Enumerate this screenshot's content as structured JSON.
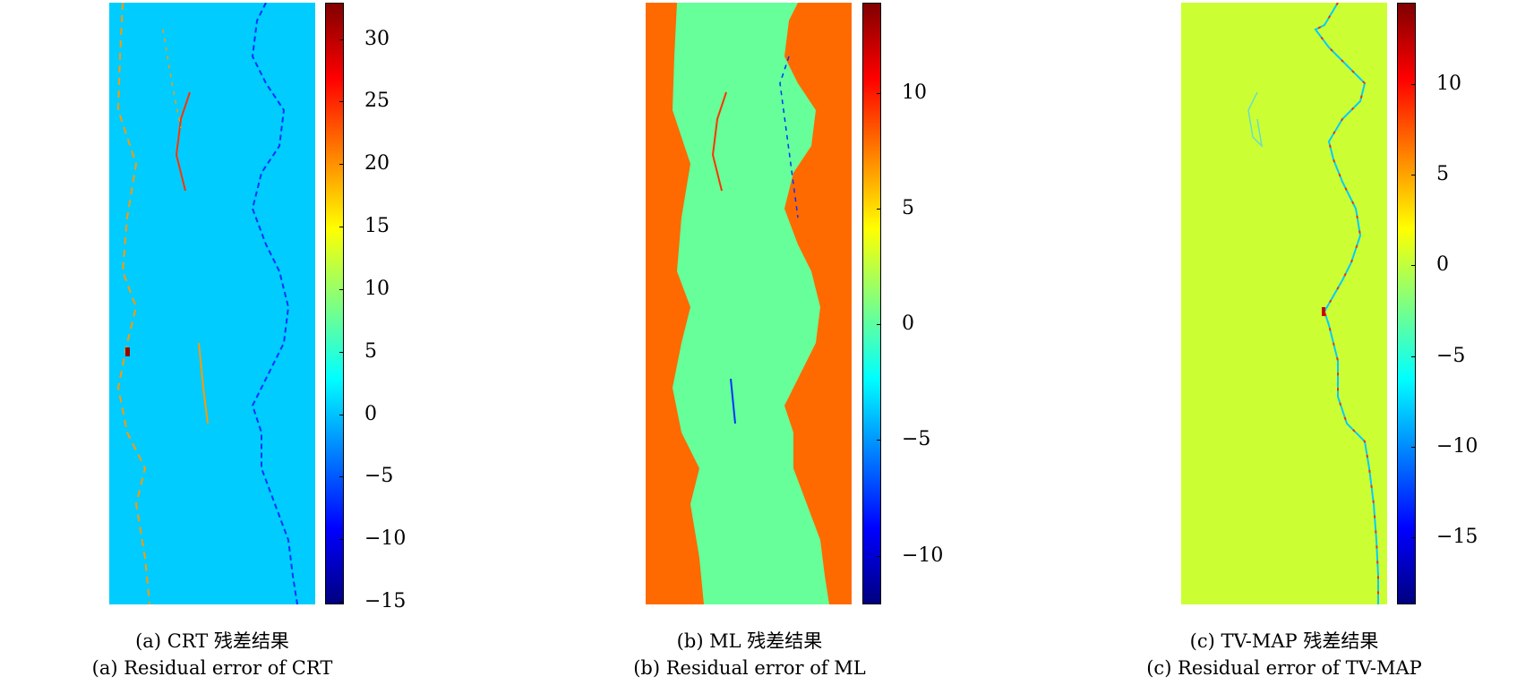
{
  "panels": [
    {
      "caption_cn": "(a) CRT 残差结果",
      "caption_en": "(a) Residual error of CRT",
      "background": "#00ccff",
      "edge_color": "#ff9900"
    },
    {
      "caption_cn": "(b) ML 残差结果",
      "caption_en": "(b) Residual error of ML",
      "background": "#ff6a00",
      "river_color": "#66ff99"
    },
    {
      "caption_cn": "(c) TV-MAP 残差结果",
      "caption_en": "(c) Residual error of TV-MAP",
      "background": "#ccff33",
      "edge_color": "#00ccff"
    }
  ],
  "chart_data": [
    {
      "type": "heatmap",
      "colormap": "jet",
      "colorbar": {
        "range": [
          -15.2,
          32.9
        ],
        "ticks": [
          30,
          25,
          20,
          15,
          10,
          5,
          0,
          -5,
          -10,
          -15
        ],
        "tick_labels": [
          "30",
          "25",
          "20",
          "15",
          "10",
          "5",
          "0",
          "−5",
          "−10",
          "−15"
        ]
      }
    },
    {
      "type": "heatmap",
      "colormap": "jet",
      "colorbar": {
        "range": [
          -12.1,
          13.9
        ],
        "ticks": [
          10,
          5,
          0,
          -5,
          -10
        ],
        "tick_labels": [
          "10",
          "5",
          "0",
          "−5",
          "−10"
        ]
      }
    },
    {
      "type": "heatmap",
      "colormap": "jet",
      "colorbar": {
        "range": [
          -18.7,
          14.5
        ],
        "ticks": [
          10,
          5,
          0,
          -5,
          -10,
          -15
        ],
        "tick_labels": [
          "10",
          "5",
          "0",
          "−5",
          "−10",
          "−15"
        ]
      }
    }
  ]
}
